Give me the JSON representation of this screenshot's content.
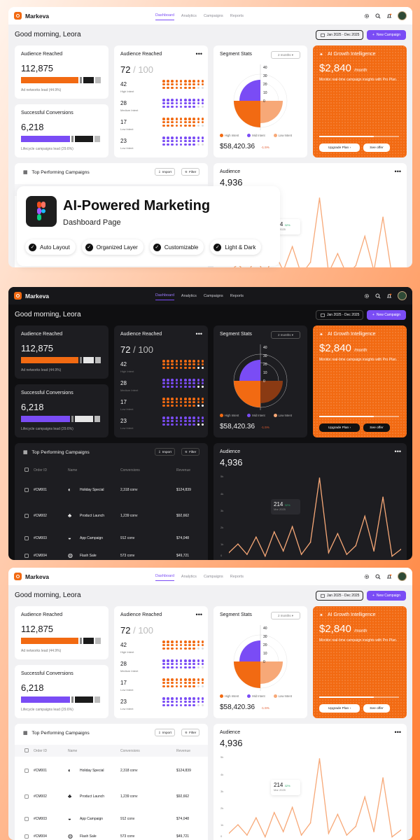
{
  "app": {
    "brand": "Markeva",
    "nav": [
      "Dashboard",
      "Analytics",
      "Campaigns",
      "Reports"
    ],
    "greeting": "Good morning, Leora",
    "date_range": "Jan 2025 - Dec 2025",
    "new_campaign": "New Campaign"
  },
  "audience_card": {
    "title": "Audience Reached",
    "value": "112,875",
    "note": "Ad networks lead (44.9%)"
  },
  "conversions_card": {
    "title": "Successful Conversions",
    "value": "6,218",
    "note": "Lifecycle campaigns lead (29.6%)"
  },
  "intent_card": {
    "title": "Audience Reached",
    "value": "72",
    "total": "/ 100",
    "rows": [
      {
        "value": "42",
        "label": "High Intent"
      },
      {
        "value": "28",
        "label": "Medium Intent"
      },
      {
        "value": "17",
        "label": "Low Intent"
      },
      {
        "value": "23",
        "label": "Low Intent"
      }
    ]
  },
  "segment_card": {
    "title": "Segment Stats",
    "period": "2 months",
    "axis": [
      "40",
      "30",
      "20",
      "10",
      "0"
    ],
    "legend": [
      "High Intent",
      "Mid Intent",
      "Low Intent"
    ],
    "value": "$58,420.36",
    "change": "-1.5%"
  },
  "ai_card": {
    "title": "AI Growth Intelligence",
    "price": "$2,840",
    "per": "/month",
    "desc": "Monitor real-time campaign insights with Pro Plan.",
    "upgrade": "Upgrade Plan",
    "offer": "See offer"
  },
  "campaigns": {
    "title": "Top Performing Campaigns",
    "import": "Import",
    "filter": "Filter",
    "headers": [
      "Order ID",
      "Name",
      "Conversions",
      "Revenue"
    ],
    "rows": [
      {
        "id": "#CM001",
        "name": "Holiday Special",
        "conv": "2,318 conv",
        "rev": "$124,839"
      },
      {
        "id": "#CM002",
        "name": "Product Launch",
        "conv": "1,239 conv",
        "rev": "$92,662"
      },
      {
        "id": "#CM003",
        "name": "App Campaign",
        "conv": "912 conv",
        "rev": "$74,048"
      },
      {
        "id": "#CM004",
        "name": "Flash Sale",
        "conv": "573 conv",
        "rev": "$49,721"
      }
    ]
  },
  "audience_chart": {
    "title": "Audience",
    "value": "4,936",
    "yticks": [
      "5k",
      "4k",
      "3k",
      "2k",
      "1k",
      "0"
    ],
    "tooltip": {
      "value": "214",
      "change": "32%",
      "date": "Mar 2025"
    }
  },
  "badge": {
    "title": "AI-Powered Marketing",
    "subtitle": "Dashboard Page",
    "features": [
      "Auto Layout",
      "Organized Layer",
      "Customizable",
      "Light & Dark"
    ]
  },
  "colors": {
    "orange": "#f26a12",
    "purple": "#7a4cf5",
    "peach": "#f7a877"
  },
  "chart_data": {
    "type": "line",
    "title": "Audience",
    "yticks": [
      "0",
      "1k",
      "2k",
      "3k",
      "4k",
      "5k"
    ],
    "ylim": [
      0,
      5000
    ],
    "x": [
      "1",
      "2",
      "3",
      "4",
      "5",
      "6",
      "7",
      "8",
      "9",
      "10",
      "11",
      "12",
      "13",
      "14",
      "15",
      "16",
      "17",
      "18",
      "19",
      "20"
    ],
    "series": [
      {
        "values": [
          300,
          800,
          200,
          1200,
          100,
          1500,
          400,
          1800,
          200,
          900,
          4600,
          300,
          1400,
          200,
          700,
          2400,
          400,
          3500,
          100,
          500
        ]
      }
    ]
  }
}
